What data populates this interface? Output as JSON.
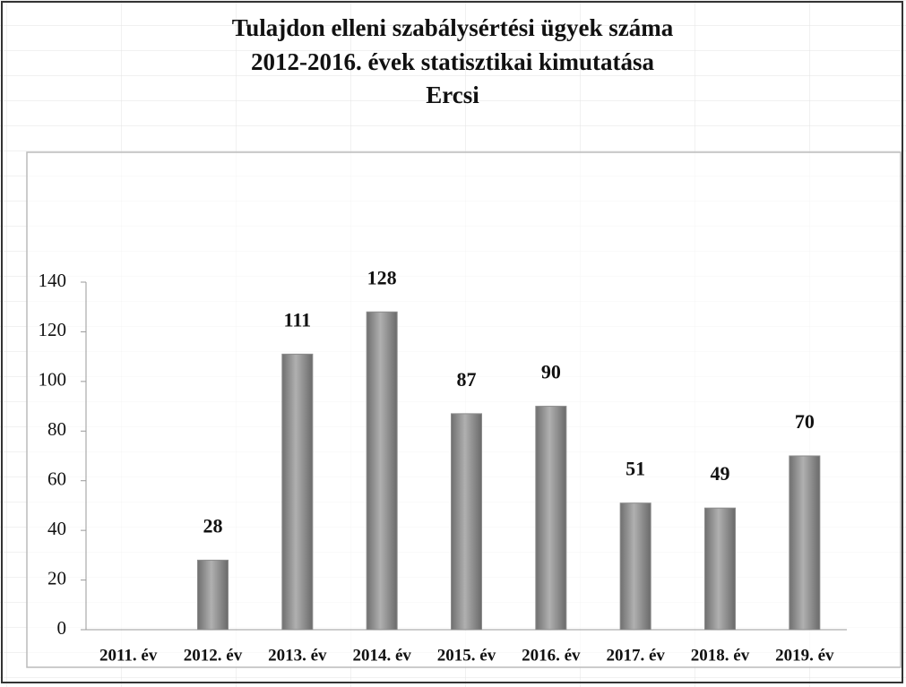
{
  "chart_data": {
    "type": "bar",
    "title_lines": [
      "Tulajdon elleni szabálysértési ügyek száma",
      "2012-2016. évek statisztikai kimutatása",
      "Ercsi"
    ],
    "categories": [
      "2011. év",
      "2012. év",
      "2013. év",
      "2014. év",
      "2015. év",
      "2016. év",
      "2017. év",
      "2018. év",
      "2019. év"
    ],
    "values": [
      null,
      28,
      111,
      128,
      87,
      90,
      51,
      49,
      70
    ],
    "color": "#8c8c8c",
    "ylim": [
      0,
      140
    ],
    "yticks": [
      0,
      20,
      40,
      60,
      80,
      100,
      120,
      140
    ],
    "grid": false
  }
}
